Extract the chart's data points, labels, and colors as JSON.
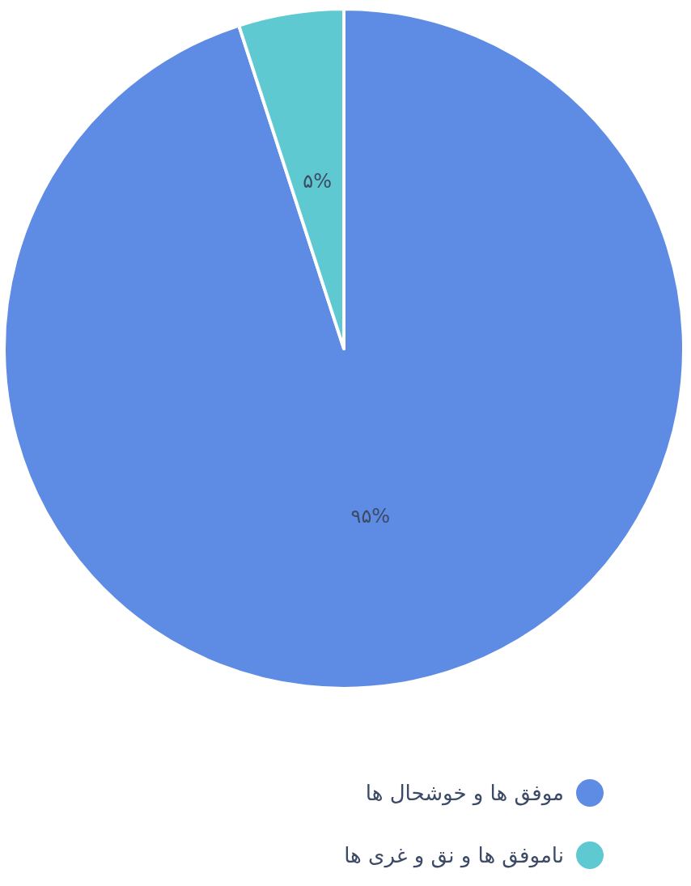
{
  "chart_data": {
    "type": "pie",
    "categories": [
      "موفق ها و خوشحال ها",
      "ناموفق ها و نق و غری ها"
    ],
    "values": [
      95,
      5
    ],
    "colors": [
      "#5e8be3",
      "#5ec9d1"
    ],
    "value_labels": [
      "۹۵%",
      "۵%"
    ],
    "legend": "bottom"
  }
}
